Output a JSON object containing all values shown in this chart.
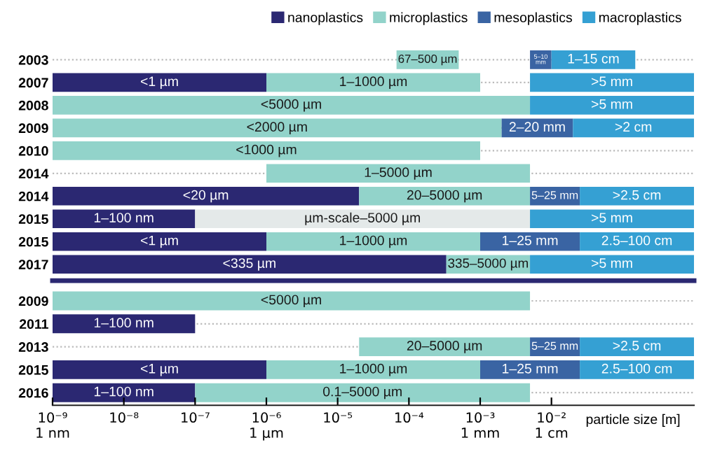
{
  "chart_data": [
    {
      "type": "bar",
      "orientation": "horizontal",
      "log": "x",
      "grid": "y",
      "legend": "top",
      "tick_labels": "y",
      "categories": [
        "2003",
        "2007",
        "2008",
        "2009",
        "2010",
        "2014",
        "2014",
        "2015",
        "2015",
        "2017"
      ],
      "xlim": [
        1e-09,
        1
      ],
      "series": [
        {
          "name": "nanoplastics",
          "color": "#2b2872",
          "base": [
            null,
            1e-09,
            null,
            null,
            null,
            null,
            1e-09,
            1e-09,
            1e-09,
            1e-09
          ],
          "values": [
            null,
            9.99e-07,
            null,
            null,
            null,
            null,
            1.9999e-05,
            9.9e-08,
            9.99e-07,
            0.000334999
          ],
          "value_labels": [
            null,
            "<1 µm",
            null,
            null,
            null,
            null,
            "<20 µm",
            "1–100 nm",
            "<1 µm",
            "<335 µm"
          ]
        },
        {
          "name": "microplastics",
          "color": "#92d3ca",
          "colors": [
            "#92d3ca",
            "#92d3ca",
            "#92d3ca",
            "#92d3ca",
            "#92d3ca",
            "#92d3ca",
            "#92d3ca",
            "#e4e9e9",
            "#92d3ca",
            "#92d3ca"
          ],
          "base": [
            6.7e-05,
            1e-06,
            1e-09,
            1e-09,
            1e-09,
            1e-06,
            2e-05,
            1e-07,
            1e-06,
            0.000335
          ],
          "values": [
            0.000433,
            0.000999,
            0.004999999,
            0.001999999,
            0.000999999,
            0.004999,
            0.00498,
            0.0049999,
            0.000999,
            0.004665
          ],
          "value_labels": [
            "67–500 µm",
            "1–1000 µm",
            "<5000 µm",
            "<2000 µm",
            "<1000 µm",
            "1–5000 µm",
            "20–5000 µm",
            "µm-scale–5000 µm",
            "1–1000 µm",
            "335–5000 µm"
          ]
        },
        {
          "name": "mesoplastics",
          "color": "#3a64a3",
          "base": [
            0.005,
            null,
            null,
            0.002,
            null,
            null,
            0.005,
            null,
            0.001,
            null
          ],
          "values": [
            0.005,
            null,
            null,
            0.018,
            null,
            null,
            0.02,
            null,
            0.024,
            null
          ],
          "value_labels": [
            "5–10 mm",
            null,
            null,
            "2–20 mm",
            null,
            null,
            "5–25 mm",
            null,
            "1–25 mm",
            null
          ]
        },
        {
          "name": "macroplastics",
          "color": "#35a0d3",
          "base": [
            0.01,
            0.005,
            0.005,
            0.02,
            null,
            null,
            0.025,
            0.005,
            0.025,
            0.005
          ],
          "values": [
            0.14,
            0.995,
            0.995,
            0.98,
            null,
            null,
            0.975,
            0.995,
            0.975,
            0.995
          ],
          "value_labels": [
            "1–15 cm",
            ">5 mm",
            ">5 mm",
            ">2 cm",
            null,
            null,
            ">2.5 cm",
            ">5 mm",
            "2.5–100 cm",
            ">5 mm"
          ]
        }
      ]
    },
    {
      "type": "bar",
      "orientation": "horizontal",
      "log": "x",
      "grid": "y",
      "xlabel": "particle size [m]",
      "categories": [
        "2009",
        "2011",
        "2013",
        "2015",
        "2016"
      ],
      "xlim": [
        1e-09,
        1
      ],
      "xticks": [
        {
          "value": 1e-09,
          "label": "10⁻⁹\n1 nm"
        },
        {
          "value": 1e-08,
          "label": "10⁻⁸"
        },
        {
          "value": 1e-07,
          "label": "10⁻⁷"
        },
        {
          "value": 1e-06,
          "label": "10⁻⁶\n1 µm"
        },
        {
          "value": 1e-05,
          "label": "10⁻⁵"
        },
        {
          "value": 0.0001,
          "label": "10⁻⁴"
        },
        {
          "value": 0.001,
          "label": "10⁻³\n1 mm"
        },
        {
          "value": 0.01,
          "label": "10⁻²\n1 cm"
        }
      ],
      "series": [
        {
          "color": "#2b2872",
          "base": [
            null,
            1e-09,
            null,
            1e-09,
            1e-09
          ],
          "values": [
            null,
            9.9e-08,
            null,
            9.99e-07,
            9.9e-08
          ],
          "value_labels": [
            null,
            "1–100 nm",
            null,
            "<1 µm",
            "1–100 nm"
          ]
        },
        {
          "color": "#92d3ca",
          "base": [
            1e-09,
            null,
            2e-05,
            1e-06,
            1e-07
          ],
          "values": [
            0.004999999,
            null,
            0.00498,
            0.000999,
            0.0049999
          ],
          "value_labels": [
            "<5000 µm",
            null,
            "20–5000 µm",
            "1–1000 µm",
            "0.1–5000 µm"
          ]
        },
        {
          "color": "#3a64a3",
          "base": [
            null,
            null,
            0.005,
            0.001,
            null
          ],
          "values": [
            null,
            null,
            0.02,
            0.024,
            null
          ],
          "value_labels": [
            null,
            null,
            "5–25 mm",
            "1–25 mm",
            null
          ]
        },
        {
          "color": "#35a0d3",
          "base": [
            null,
            null,
            0.025,
            0.025,
            null
          ],
          "values": [
            null,
            null,
            0.975,
            0.975,
            null
          ],
          "value_labels": [
            null,
            null,
            ">2.5 cm",
            "2.5–100 cm",
            null
          ]
        }
      ]
    }
  ]
}
